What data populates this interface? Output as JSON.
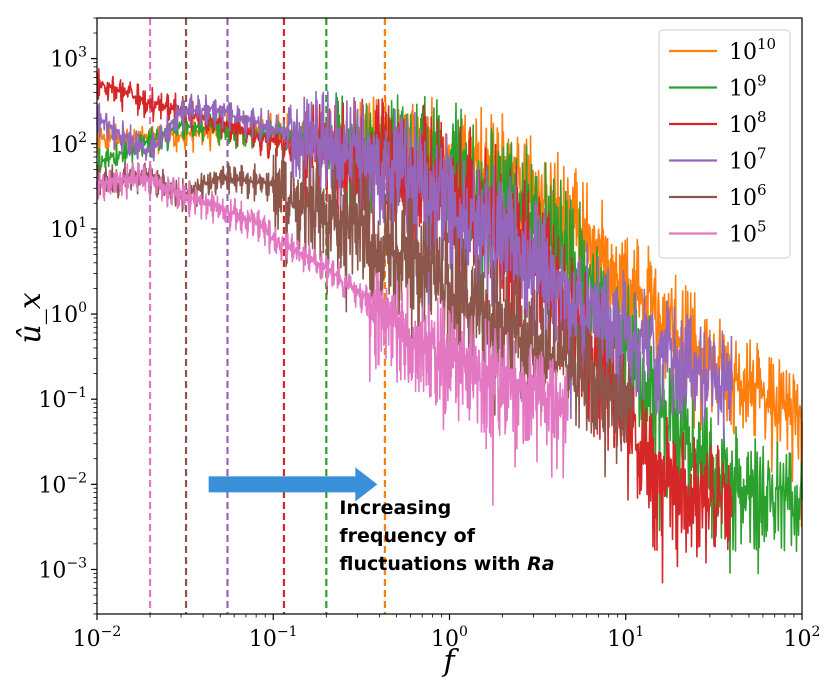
{
  "chart_data": {
    "type": "line",
    "title": "",
    "xlabel": "f",
    "ylabel": "û_x",
    "xscale": "log",
    "yscale": "log",
    "xlim": [
      0.01,
      100
    ],
    "ylim": [
      0.0003,
      3000
    ],
    "legend_position": "top-right",
    "x_ticks": [
      {
        "value": 0.01,
        "base": "10",
        "exp": "−2"
      },
      {
        "value": 0.1,
        "base": "10",
        "exp": "−1"
      },
      {
        "value": 1,
        "base": "10",
        "exp": "0"
      },
      {
        "value": 10,
        "base": "10",
        "exp": "1"
      },
      {
        "value": 100,
        "base": "10",
        "exp": "2"
      }
    ],
    "y_ticks": [
      {
        "value": 0.001,
        "base": "10",
        "exp": "−3"
      },
      {
        "value": 0.01,
        "base": "10",
        "exp": "−2"
      },
      {
        "value": 0.1,
        "base": "10",
        "exp": "−1"
      },
      {
        "value": 1,
        "base": "10",
        "exp": "0"
      },
      {
        "value": 10,
        "base": "10",
        "exp": "1"
      },
      {
        "value": 100,
        "base": "10",
        "exp": "2"
      },
      {
        "value": 1000,
        "base": "10",
        "exp": "3"
      }
    ],
    "series": [
      {
        "name": "10^10",
        "label_base": "10",
        "label_exp": "10",
        "color": "#ff7f0e",
        "vline_x": 0.43,
        "noise_start": 0.3,
        "noise_amp": 0.5,
        "points": [
          [
            0.01,
            120
          ],
          [
            0.03,
            130
          ],
          [
            0.05,
            150
          ],
          [
            0.1,
            150
          ],
          [
            0.2,
            130
          ],
          [
            0.4,
            120
          ],
          [
            0.7,
            100
          ],
          [
            1,
            80
          ],
          [
            2,
            50
          ],
          [
            4,
            18
          ],
          [
            7,
            6
          ],
          [
            10,
            2.5
          ],
          [
            20,
            0.6
          ],
          [
            40,
            0.2
          ],
          [
            70,
            0.1
          ],
          [
            100,
            0.065
          ]
        ]
      },
      {
        "name": "10^9",
        "label_base": "10",
        "label_exp": "9",
        "color": "#2ca02c",
        "vline_x": 0.2,
        "noise_start": 0.2,
        "noise_amp": 0.6,
        "points": [
          [
            0.01,
            60
          ],
          [
            0.02,
            110
          ],
          [
            0.03,
            170
          ],
          [
            0.05,
            150
          ],
          [
            0.1,
            130
          ],
          [
            0.2,
            120
          ],
          [
            0.4,
            100
          ],
          [
            0.7,
            75
          ],
          [
            1,
            55
          ],
          [
            2,
            25
          ],
          [
            4,
            7
          ],
          [
            7,
            1.5
          ],
          [
            10,
            0.4
          ],
          [
            20,
            0.05
          ],
          [
            30,
            0.015
          ],
          [
            50,
            0.009
          ],
          [
            100,
            0.007
          ]
        ]
      },
      {
        "name": "10^8",
        "label_base": "10",
        "label_exp": "8",
        "color": "#d62728",
        "vline_x": 0.115,
        "noise_start": 0.15,
        "noise_amp": 0.6,
        "points": [
          [
            0.01,
            550
          ],
          [
            0.02,
            300
          ],
          [
            0.03,
            250
          ],
          [
            0.05,
            180
          ],
          [
            0.1,
            110
          ],
          [
            0.2,
            90
          ],
          [
            0.4,
            70
          ],
          [
            0.7,
            50
          ],
          [
            1,
            35
          ],
          [
            2,
            12
          ],
          [
            4,
            2
          ],
          [
            7,
            0.3
          ],
          [
            10,
            0.06
          ],
          [
            15,
            0.015
          ],
          [
            25,
            0.008
          ],
          [
            40,
            0.007
          ]
        ]
      },
      {
        "name": "10^7",
        "label_base": "10",
        "label_exp": "7",
        "color": "#9467bd",
        "vline_x": 0.055,
        "noise_start": 0.12,
        "noise_amp": 0.55,
        "points": [
          [
            0.01,
            200
          ],
          [
            0.02,
            80
          ],
          [
            0.03,
            250
          ],
          [
            0.05,
            250
          ],
          [
            0.1,
            150
          ],
          [
            0.2,
            110
          ],
          [
            0.4,
            70
          ],
          [
            0.7,
            40
          ],
          [
            1,
            25
          ],
          [
            2,
            8
          ],
          [
            4,
            2.5
          ],
          [
            7,
            1
          ],
          [
            10,
            0.6
          ],
          [
            20,
            0.3
          ],
          [
            40,
            0.18
          ]
        ]
      },
      {
        "name": "10^6",
        "label_base": "10",
        "label_exp": "6",
        "color": "#8c564b",
        "vline_x": 0.032,
        "noise_start": 0.1,
        "noise_amp": 0.5,
        "points": [
          [
            0.01,
            35
          ],
          [
            0.02,
            45
          ],
          [
            0.03,
            25
          ],
          [
            0.05,
            40
          ],
          [
            0.1,
            35
          ],
          [
            0.2,
            18
          ],
          [
            0.4,
            8
          ],
          [
            0.7,
            4
          ],
          [
            1,
            2.5
          ],
          [
            2,
            0.8
          ],
          [
            4,
            0.3
          ],
          [
            7,
            0.17
          ],
          [
            11,
            0.11
          ]
        ]
      },
      {
        "name": "10^5",
        "label_base": "10",
        "label_exp": "5",
        "color": "#e377c2",
        "vline_x": 0.02,
        "noise_start": 0.35,
        "noise_amp": 0.45,
        "points": [
          [
            0.01,
            35
          ],
          [
            0.02,
            40
          ],
          [
            0.03,
            25
          ],
          [
            0.05,
            18
          ],
          [
            0.08,
            12
          ],
          [
            0.1,
            8
          ],
          [
            0.2,
            3.5
          ],
          [
            0.4,
            1.2
          ],
          [
            0.7,
            0.5
          ],
          [
            1,
            0.35
          ],
          [
            2,
            0.18
          ],
          [
            4,
            0.1
          ],
          [
            4.7,
            0.09
          ]
        ]
      }
    ],
    "arrow": {
      "from_x": 0.043,
      "to_x": 0.3,
      "y": 0.01,
      "color": "#3a8fd9"
    },
    "annotation": {
      "lines": [
        "Increasing",
        "frequency of",
        "fluctuations with"
      ],
      "italic_suffix": "Ra",
      "x": 0.4,
      "y": 0.0045
    }
  }
}
